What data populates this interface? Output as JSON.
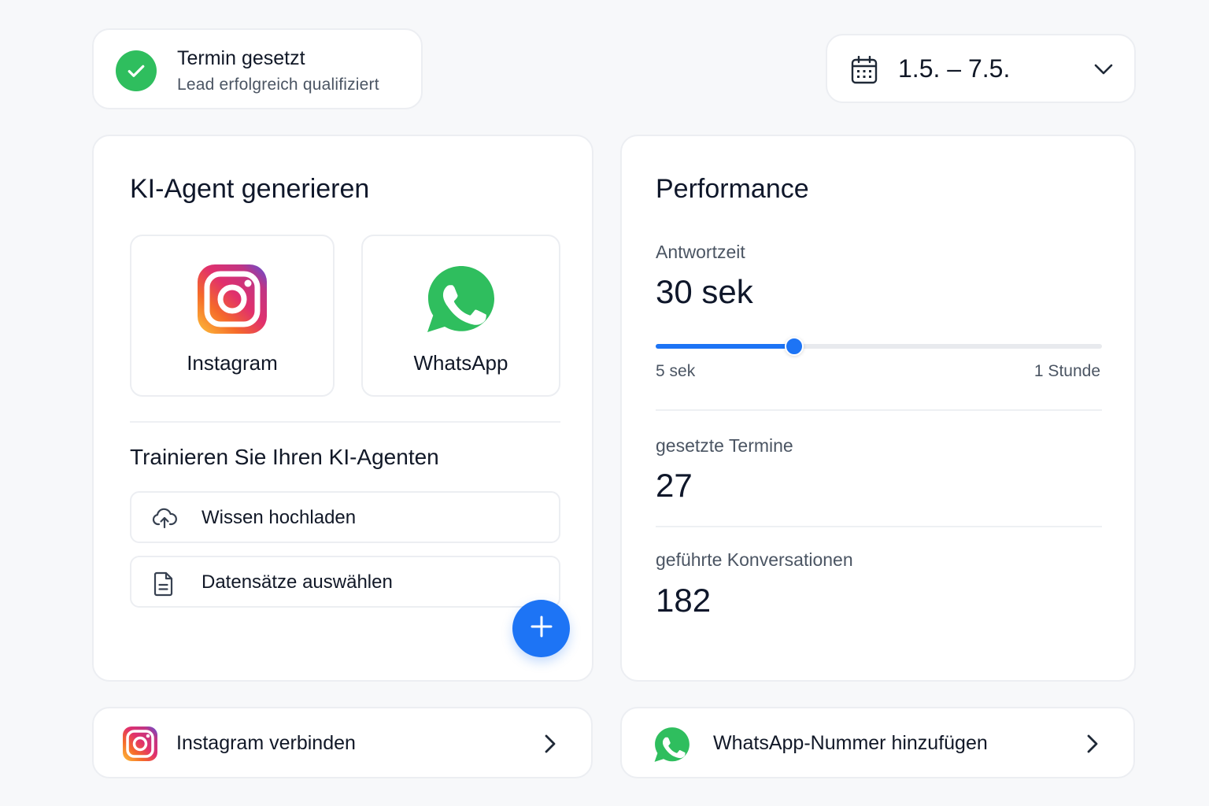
{
  "toast": {
    "title": "Termin gesetzt",
    "subtitle": "Lead erfolgreich qualifiziert",
    "icon": "check-circle-icon",
    "color": "#2fbe5e"
  },
  "date_picker": {
    "label": "1.5. – 7.5.",
    "icon": "calendar-icon"
  },
  "agent": {
    "title": "KI-Agent generieren",
    "platforms": [
      {
        "label": "Instagram",
        "icon": "instagram-icon"
      },
      {
        "label": "WhatsApp",
        "icon": "whatsapp-icon"
      }
    ],
    "train_title": "Trainieren Sie Ihren KI-Agenten",
    "actions": [
      {
        "label": "Wissen hochladen",
        "icon": "cloud-upload-icon"
      },
      {
        "label": "Datensätze auswählen",
        "icon": "document-icon"
      }
    ],
    "fab_icon": "plus-icon"
  },
  "performance": {
    "title": "Performance",
    "response": {
      "label": "Antwortzeit",
      "value": "30 sek",
      "slider_min": "5 sek",
      "slider_max": "1 Stunde",
      "slider_level": 0.31
    },
    "appointments": {
      "label": "gesetzte Termine",
      "value": "27"
    },
    "conversations": {
      "label": "geführte Konversationen",
      "value": "182"
    }
  },
  "connect": [
    {
      "label": "Instagram verbinden",
      "icon": "instagram-icon"
    },
    {
      "label": "WhatsApp-Nummer hinzufügen",
      "icon": "whatsapp-icon"
    }
  ],
  "colors": {
    "accent": "#1d74f5",
    "success": "#2fbe5e",
    "whatsapp": "#2fbe5e"
  }
}
